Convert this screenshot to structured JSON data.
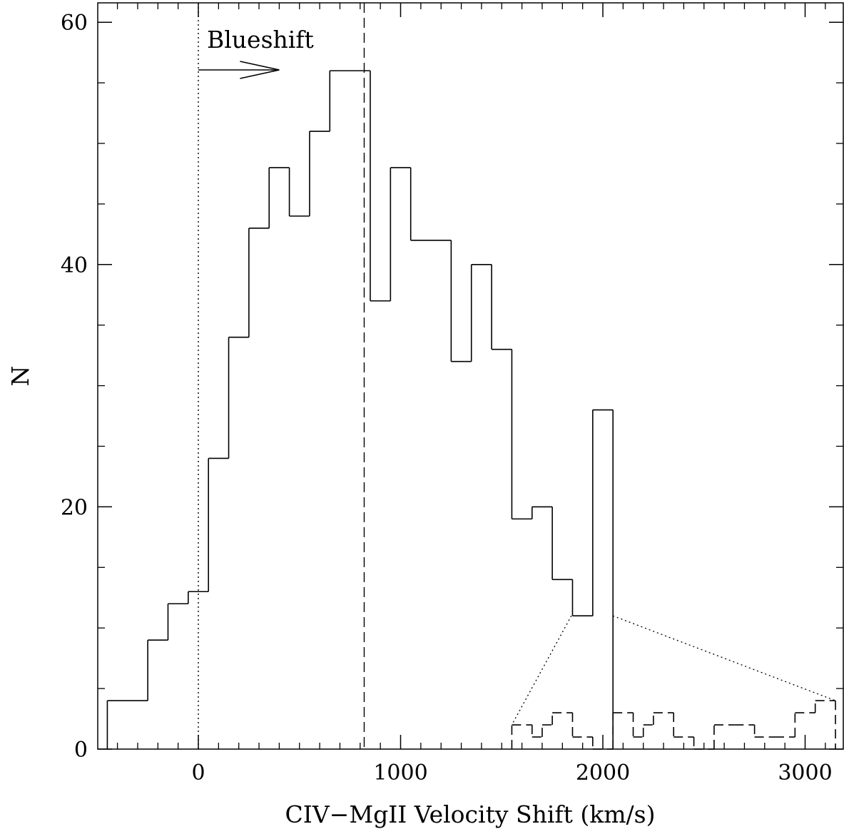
{
  "chart_data": {
    "type": "histogram",
    "title": "",
    "xlabel": "CIV−MgII Velocity Shift (km/s)",
    "ylabel": "N",
    "xlim": [
      -450,
      3200
    ],
    "ylim": [
      0,
      61.5
    ],
    "grid": false,
    "x_ticks": [
      0,
      1000,
      2000,
      3000
    ],
    "y_ticks": [
      0,
      20,
      40,
      60
    ],
    "x_minor_step": 100,
    "y_minor_step": 5,
    "series": [
      {
        "style": "solid",
        "edges": [
          -450,
          -250,
          -150,
          -50,
          50,
          150,
          250,
          350,
          450,
          550,
          650,
          850,
          950,
          1050,
          1250,
          1350,
          1450,
          1550,
          1650,
          1750,
          1850,
          1950,
          2050
        ],
        "values": [
          4,
          9,
          12,
          13,
          24,
          34,
          43,
          48,
          44,
          51,
          56,
          37,
          48,
          42,
          32,
          40,
          33,
          19,
          20,
          14,
          11,
          28
        ]
      },
      {
        "style": "dashed",
        "edges": [
          1550,
          1650,
          1700,
          1750,
          1850,
          1950,
          2050,
          2150,
          2200,
          2250,
          2350,
          2450,
          2550,
          2650,
          2750,
          2850,
          2950,
          3050,
          3150
        ],
        "values": [
          2,
          1,
          2,
          3,
          1,
          0,
          3,
          1,
          2,
          3,
          1,
          0,
          2,
          2,
          1,
          1,
          3,
          4
        ]
      }
    ],
    "reference_lines": [
      {
        "style": "dotted",
        "x": 0
      },
      {
        "style": "dashed",
        "x": 820
      }
    ],
    "annotations": [
      {
        "text": "Blueshift",
        "arrow": "right"
      }
    ],
    "zoom_connector_lines": "dotted"
  }
}
